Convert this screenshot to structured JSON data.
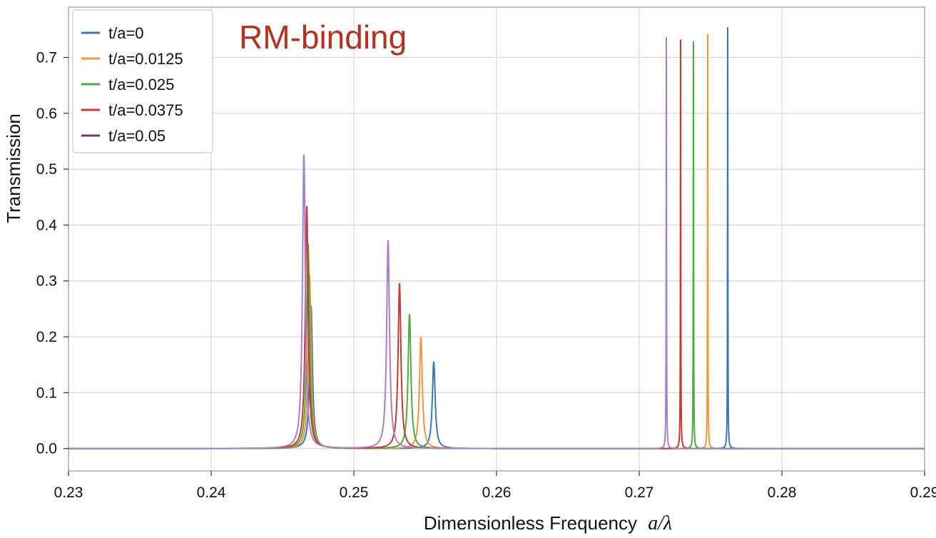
{
  "chart_data": {
    "type": "line",
    "title": "RM-binding",
    "title_color": "#B5321F",
    "xlabel": "Dimensionless Frequency",
    "xlabel_math": "a/λ",
    "ylabel": "Transmission",
    "xlim": [
      0.23,
      0.29
    ],
    "ylim": [
      -0.04,
      0.79
    ],
    "x_ticks": [
      "0.23",
      "0.24",
      "0.25",
      "0.26",
      "0.27",
      "0.28",
      "0.29"
    ],
    "y_ticks": [
      "0.0",
      "0.1",
      "0.2",
      "0.3",
      "0.4",
      "0.5",
      "0.6",
      "0.7"
    ],
    "grid": true,
    "legend_position": "top-left",
    "series": [
      {
        "name": "t/a=0",
        "color": "#3A78B5",
        "legend_color": "#3A78B5",
        "peaks": [
          {
            "x": 0.247,
            "y": 0.255,
            "w": 0.00012
          },
          {
            "x": 0.2556,
            "y": 0.155,
            "w": 0.00012
          },
          {
            "x": 0.2762,
            "y": 0.753,
            "w": 1.5e-05
          }
        ]
      },
      {
        "name": "t/a=0.0125",
        "color": "#F0973A",
        "legend_color": "#F0973A",
        "peaks": [
          {
            "x": 0.2469,
            "y": 0.31,
            "w": 0.00012
          },
          {
            "x": 0.2547,
            "y": 0.199,
            "w": 0.00012
          },
          {
            "x": 0.2748,
            "y": 0.741,
            "w": 1.5e-05
          }
        ]
      },
      {
        "name": "t/a=0.025",
        "color": "#4EAA3E",
        "legend_color": "#4EAA3E",
        "peaks": [
          {
            "x": 0.2468,
            "y": 0.365,
            "w": 0.00012
          },
          {
            "x": 0.2539,
            "y": 0.24,
            "w": 0.00012
          },
          {
            "x": 0.2738,
            "y": 0.728,
            "w": 1.5e-05
          }
        ]
      },
      {
        "name": "t/a=0.0375",
        "color": "#C83A30",
        "legend_color": "#C83A30",
        "peaks": [
          {
            "x": 0.2467,
            "y": 0.433,
            "w": 0.00012
          },
          {
            "x": 0.2532,
            "y": 0.295,
            "w": 0.00012
          },
          {
            "x": 0.2729,
            "y": 0.731,
            "w": 1.5e-05
          }
        ]
      },
      {
        "name": "t/a=0.05",
        "color": "#A680CC",
        "legend_color": "#7A3566",
        "peaks": [
          {
            "x": 0.2465,
            "y": 0.525,
            "w": 0.00012
          },
          {
            "x": 0.2524,
            "y": 0.372,
            "w": 0.00012
          },
          {
            "x": 0.2719,
            "y": 0.735,
            "w": 1.5e-05
          }
        ]
      }
    ]
  }
}
